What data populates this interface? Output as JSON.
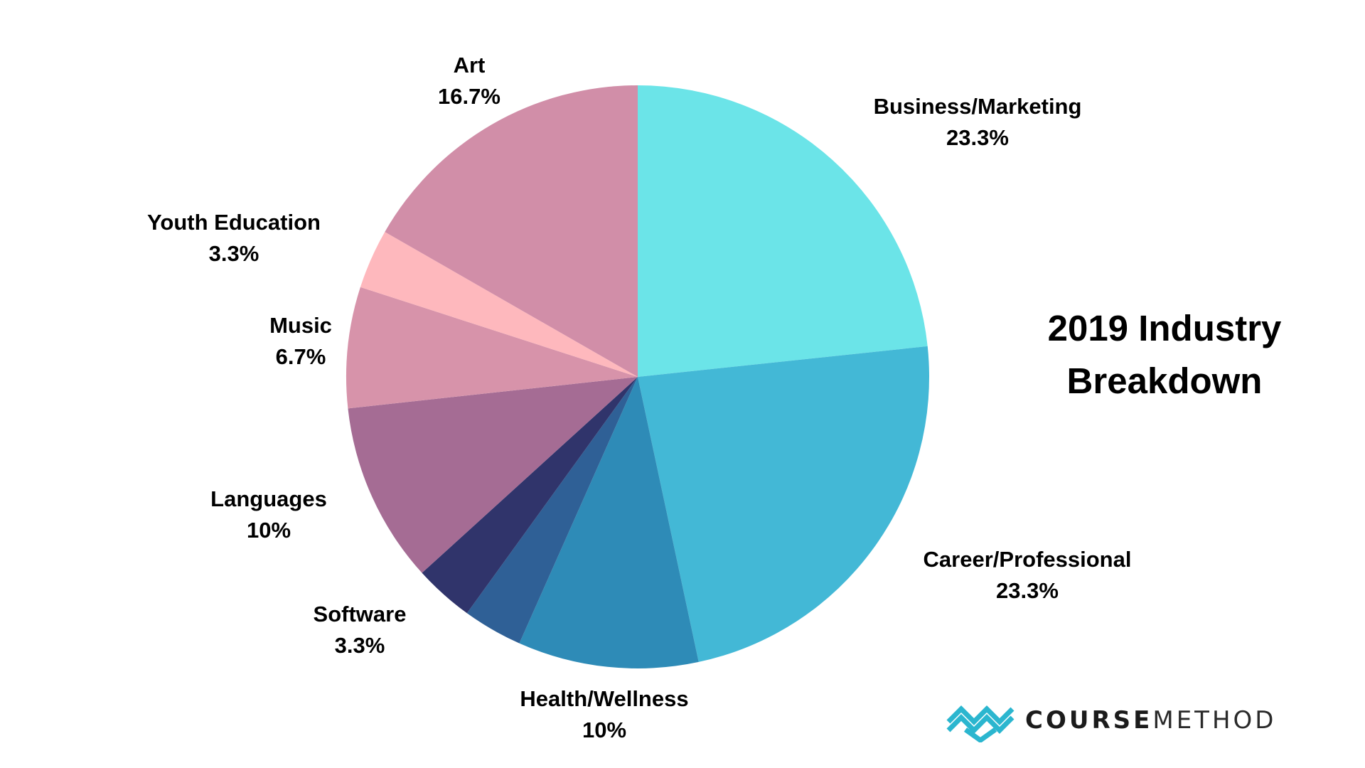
{
  "chart_data": {
    "type": "pie",
    "title_lines": [
      "2019 Industry",
      "Breakdown"
    ],
    "slices": [
      {
        "label": "Business/Marketing",
        "value": 23.3,
        "value_label": "23.3%",
        "color": "#6be4e8"
      },
      {
        "label": "Career/Professional",
        "value": 23.3,
        "value_label": "23.3%",
        "color": "#43b8d6"
      },
      {
        "label": "Health/Wellness",
        "value": 10,
        "value_label": "10%",
        "color": "#2e8bb7"
      },
      {
        "label": "",
        "value": 3.3,
        "value_label": "",
        "color": "#2f6096"
      },
      {
        "label": "Software",
        "value": 3.3,
        "value_label": "3.3%",
        "color": "#30346b"
      },
      {
        "label": "Languages",
        "value": 10,
        "value_label": "10%",
        "color": "#a56c94"
      },
      {
        "label": "Music",
        "value": 6.7,
        "value_label": "6.7%",
        "color": "#d793aa"
      },
      {
        "label": "Youth Education",
        "value": 3.3,
        "value_label": "3.3%",
        "color": "#feb8bd"
      },
      {
        "label": "Art",
        "value": 16.7,
        "value_label": "16.7%",
        "color": "#d18ea8"
      }
    ]
  },
  "brand": {
    "strong": "COURSE",
    "light": "METHOD",
    "color": "#2bb6cf"
  }
}
